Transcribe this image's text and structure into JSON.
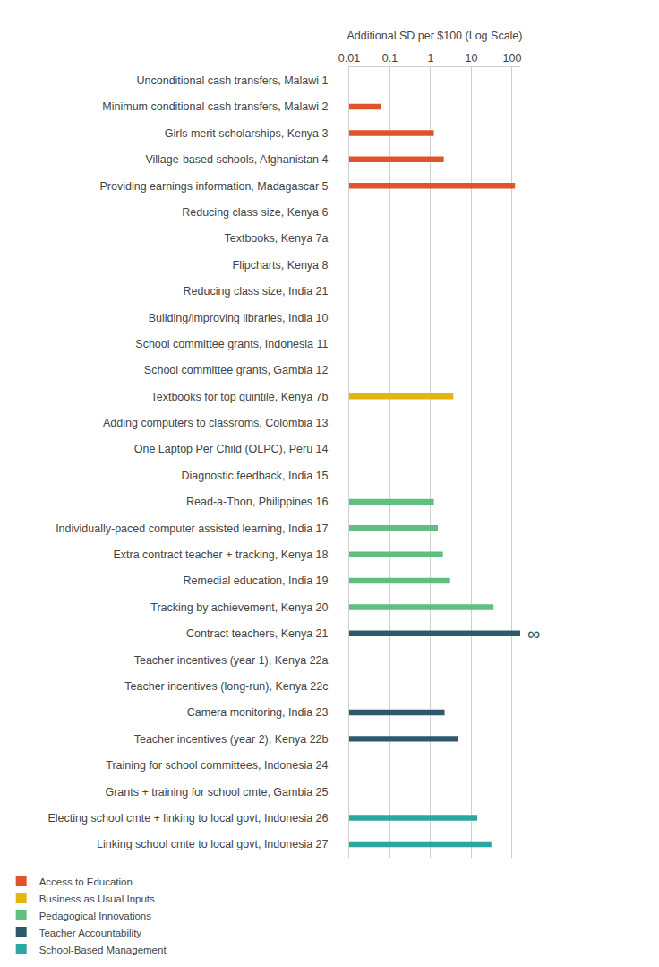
{
  "chart_data": {
    "type": "bar",
    "orientation": "horizontal",
    "log": "x",
    "grid": true,
    "legend": "bottom",
    "xlabel": "Additional SD per $100 (Log Scale)",
    "xlim": [
      0.01,
      158
    ],
    "xticks": [
      0.01,
      0.1,
      1,
      10,
      100
    ],
    "categories": [
      "Unconditional cash transfers, Malawi 1",
      "Minimum conditional cash transfers, Malawi 2",
      "Girls merit scholarships, Kenya 3",
      "Village-based schools, Afghanistan 4",
      "Providing earnings information, Madagascar 5",
      "Reducing class size, Kenya 6",
      "Textbooks, Kenya 7a",
      "Flipcharts, Kenya 8",
      "Reducing class size, India 21",
      "Building/improving libraries, India 10",
      "School committee grants, Indonesia 11",
      "School committee grants, Gambia 12",
      "Textbooks for top quintile, Kenya 7b",
      "Adding computers to classroms, Colombia 13",
      "One Laptop Per Child (OLPC), Peru 14",
      "Diagnostic feedback, India 15",
      "Read-a-Thon, Philippines 16",
      "Individually-paced computer assisted learning, India 17",
      "Extra contract teacher + tracking, Kenya 18",
      "Remedial education, India 19",
      "Tracking by achievement, Kenya 20",
      "Contract teachers, Kenya 21",
      "Teacher incentives (year 1), Kenya 22a",
      "Teacher incentives (long-run), Kenya 22c",
      "Camera monitoring, India 23",
      "Teacher incentives (year 2), Kenya 22b",
      "Training for school committees, Indonesia 24",
      "Grants + training for school cmte, Gambia 25",
      "Electing school cmte + linking to local govt, Indonesia 26",
      "Linking school cmte to local govt, Indonesia 27"
    ],
    "series": [
      {
        "name": "Access to Education",
        "color": "#e0532b",
        "values": [
          null,
          0.06,
          1.2,
          2.1,
          118,
          null,
          null,
          null,
          null,
          null,
          null,
          null,
          null,
          null,
          null,
          null,
          null,
          null,
          null,
          null,
          null,
          null,
          null,
          null,
          null,
          null,
          null,
          null,
          null,
          null
        ]
      },
      {
        "name": "Business as Usual Inputs",
        "color": "#e3b60e",
        "values": [
          null,
          null,
          null,
          null,
          null,
          null,
          null,
          null,
          null,
          null,
          null,
          null,
          3.6,
          null,
          null,
          null,
          null,
          null,
          null,
          null,
          null,
          null,
          null,
          null,
          null,
          null,
          null,
          null,
          null,
          null
        ]
      },
      {
        "name": "Pedagogical Innovations",
        "color": "#5fbf7f",
        "values": [
          null,
          null,
          null,
          null,
          null,
          null,
          null,
          null,
          null,
          null,
          null,
          null,
          null,
          null,
          null,
          null,
          1.2,
          1.5,
          2.0,
          3.0,
          35,
          null,
          null,
          null,
          null,
          null,
          null,
          null,
          null,
          null
        ]
      },
      {
        "name": "Teacher Accountability",
        "color": "#2d5a6b",
        "values": [
          null,
          null,
          null,
          null,
          null,
          null,
          null,
          null,
          null,
          null,
          null,
          null,
          null,
          null,
          null,
          null,
          null,
          null,
          null,
          null,
          null,
          158,
          null,
          null,
          2.2,
          4.6,
          null,
          null,
          null,
          null
        ]
      },
      {
        "name": "School-Based Management",
        "color": "#29a7a0",
        "values": [
          null,
          null,
          null,
          null,
          null,
          null,
          null,
          null,
          null,
          null,
          null,
          null,
          null,
          null,
          null,
          null,
          null,
          null,
          null,
          null,
          null,
          null,
          null,
          null,
          null,
          null,
          null,
          null,
          14,
          31
        ]
      }
    ],
    "annotations": [
      {
        "category": "Contract teachers, Kenya 21",
        "text": "∞",
        "color": "#2d5a6b"
      }
    ]
  }
}
